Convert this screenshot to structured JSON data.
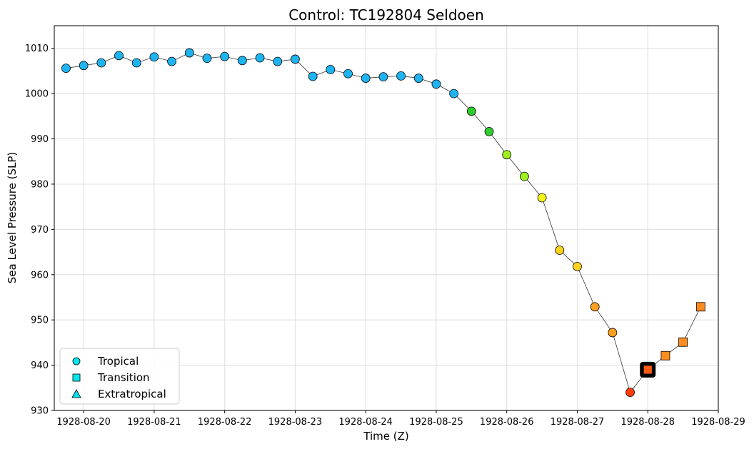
{
  "chart_data": {
    "type": "scatter",
    "title": "Control: TC192804 Seldoen",
    "xlabel": "Time (Z)",
    "ylabel": "Sea Level Pressure (SLP)",
    "xlim": [
      "1928-08-19T14:00",
      "1928-08-29T00:00"
    ],
    "ylim": [
      930,
      1015
    ],
    "x_ticks": [
      "1928-08-20",
      "1928-08-21",
      "1928-08-22",
      "1928-08-23",
      "1928-08-24",
      "1928-08-25",
      "1928-08-26",
      "1928-08-27",
      "1928-08-28",
      "1928-08-29"
    ],
    "y_ticks": [
      930,
      940,
      950,
      960,
      970,
      980,
      990,
      1000,
      1010
    ],
    "grid": true,
    "legend_position": "bottom-left",
    "legend": [
      {
        "label": "Tropical",
        "marker": "circle"
      },
      {
        "label": "Transition",
        "marker": "square"
      },
      {
        "label": "Extratropical",
        "marker": "triangle"
      }
    ],
    "legend_color": "#00e5ee",
    "line_color": "#333333",
    "highlight_time": "1928-08-28T00:00",
    "highlight_color": "#000000",
    "points": [
      {
        "t": "1928-08-19T18:00",
        "slp": 1005.6,
        "phase": "Tropical",
        "color": "#1eb4f0"
      },
      {
        "t": "1928-08-20T00:00",
        "slp": 1006.2,
        "phase": "Tropical",
        "color": "#1eb4f0"
      },
      {
        "t": "1928-08-20T06:00",
        "slp": 1006.8,
        "phase": "Tropical",
        "color": "#1eb4f0"
      },
      {
        "t": "1928-08-20T12:00",
        "slp": 1008.4,
        "phase": "Tropical",
        "color": "#1eb4f0"
      },
      {
        "t": "1928-08-20T18:00",
        "slp": 1006.8,
        "phase": "Tropical",
        "color": "#1eb4f0"
      },
      {
        "t": "1928-08-21T00:00",
        "slp": 1008.1,
        "phase": "Tropical",
        "color": "#1eb4f0"
      },
      {
        "t": "1928-08-21T06:00",
        "slp": 1007.1,
        "phase": "Tropical",
        "color": "#1eb4f0"
      },
      {
        "t": "1928-08-21T12:00",
        "slp": 1009.0,
        "phase": "Tropical",
        "color": "#1eb4f0"
      },
      {
        "t": "1928-08-21T18:00",
        "slp": 1007.8,
        "phase": "Tropical",
        "color": "#1eb4f0"
      },
      {
        "t": "1928-08-22T00:00",
        "slp": 1008.2,
        "phase": "Tropical",
        "color": "#1eb4f0"
      },
      {
        "t": "1928-08-22T06:00",
        "slp": 1007.3,
        "phase": "Tropical",
        "color": "#1eb4f0"
      },
      {
        "t": "1928-08-22T12:00",
        "slp": 1007.9,
        "phase": "Tropical",
        "color": "#1eb4f0"
      },
      {
        "t": "1928-08-22T18:00",
        "slp": 1007.1,
        "phase": "Tropical",
        "color": "#1eb4f0"
      },
      {
        "t": "1928-08-23T00:00",
        "slp": 1007.6,
        "phase": "Tropical",
        "color": "#1eb4f0"
      },
      {
        "t": "1928-08-23T06:00",
        "slp": 1003.8,
        "phase": "Tropical",
        "color": "#1eb4f0"
      },
      {
        "t": "1928-08-23T12:00",
        "slp": 1005.3,
        "phase": "Tropical",
        "color": "#1eb4f0"
      },
      {
        "t": "1928-08-23T18:00",
        "slp": 1004.4,
        "phase": "Tropical",
        "color": "#1eb4f0"
      },
      {
        "t": "1928-08-24T00:00",
        "slp": 1003.4,
        "phase": "Tropical",
        "color": "#1eb4f0"
      },
      {
        "t": "1928-08-24T06:00",
        "slp": 1003.7,
        "phase": "Tropical",
        "color": "#1eb4f0"
      },
      {
        "t": "1928-08-24T12:00",
        "slp": 1003.9,
        "phase": "Tropical",
        "color": "#1eb4f0"
      },
      {
        "t": "1928-08-24T18:00",
        "slp": 1003.4,
        "phase": "Tropical",
        "color": "#1eb4f0"
      },
      {
        "t": "1928-08-25T00:00",
        "slp": 1002.1,
        "phase": "Tropical",
        "color": "#1eb4f0"
      },
      {
        "t": "1928-08-25T06:00",
        "slp": 1000.0,
        "phase": "Tropical",
        "color": "#1eb4f0"
      },
      {
        "t": "1928-08-25T12:00",
        "slp": 996.1,
        "phase": "Tropical",
        "color": "#2ecb2e"
      },
      {
        "t": "1928-08-25T18:00",
        "slp": 991.6,
        "phase": "Tropical",
        "color": "#2ecb2e"
      },
      {
        "t": "1928-08-26T00:00",
        "slp": 986.5,
        "phase": "Tropical",
        "color": "#9ef01e"
      },
      {
        "t": "1928-08-26T06:00",
        "slp": 981.7,
        "phase": "Tropical",
        "color": "#9ef01e"
      },
      {
        "t": "1928-08-26T12:00",
        "slp": 977.0,
        "phase": "Tropical",
        "color": "#f5f51e"
      },
      {
        "t": "1928-08-26T18:00",
        "slp": 965.4,
        "phase": "Tropical",
        "color": "#ffd21e"
      },
      {
        "t": "1928-08-27T00:00",
        "slp": 961.8,
        "phase": "Tropical",
        "color": "#ffd21e"
      },
      {
        "t": "1928-08-27T06:00",
        "slp": 952.9,
        "phase": "Tropical",
        "color": "#ffa01e"
      },
      {
        "t": "1928-08-27T12:00",
        "slp": 947.2,
        "phase": "Tropical",
        "color": "#ffa01e"
      },
      {
        "t": "1928-08-27T18:00",
        "slp": 934.0,
        "phase": "Tropical",
        "color": "#ff3c0a"
      },
      {
        "t": "1928-08-28T00:00",
        "slp": 939.0,
        "phase": "Transition",
        "color": "#ff5a14"
      },
      {
        "t": "1928-08-28T06:00",
        "slp": 942.1,
        "phase": "Transition",
        "color": "#ff8c1e"
      },
      {
        "t": "1928-08-28T12:00",
        "slp": 945.1,
        "phase": "Transition",
        "color": "#ff8c1e"
      },
      {
        "t": "1928-08-28T18:00",
        "slp": 952.9,
        "phase": "Transition",
        "color": "#ff8c1e"
      }
    ]
  }
}
